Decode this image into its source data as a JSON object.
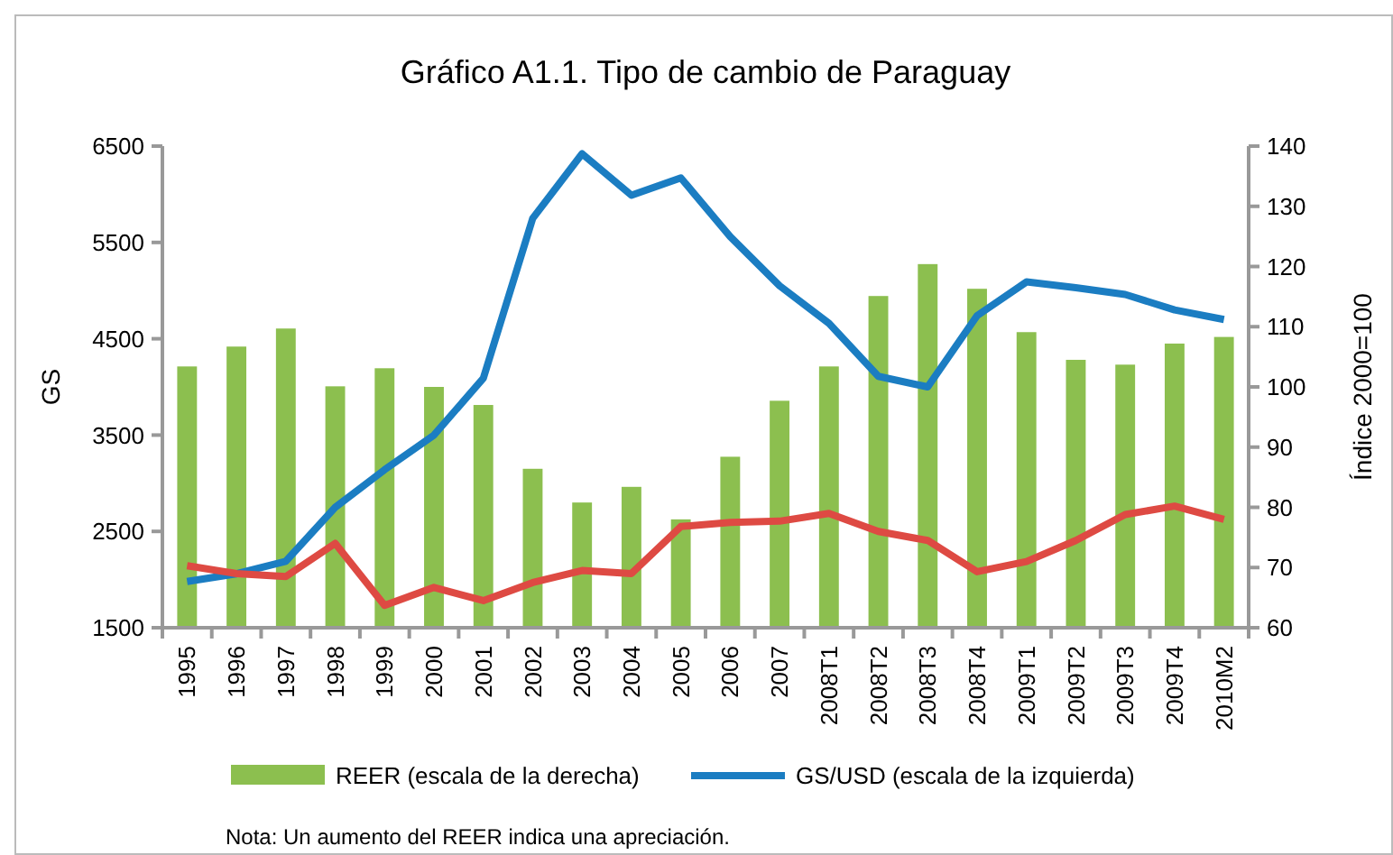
{
  "chart_data": {
    "type": "bar",
    "title": "Gráfico A1.1. Tipo de cambio de Paraguay",
    "ylabel": "GS",
    "y2label": "Índice 2000=100",
    "categories": [
      "1995",
      "1996",
      "1997",
      "1998",
      "1999",
      "2000",
      "2001",
      "2002",
      "2003",
      "2004",
      "2005",
      "2006",
      "2007",
      "2008T1",
      "2008T2",
      "2008T3",
      "2008T4",
      "2009T1",
      "2009T2",
      "2009T3",
      "2009T4",
      "2010M2"
    ],
    "series": [
      {
        "name": "REER (escala de la derecha)",
        "axis": "y2",
        "color": "#8cbf4f",
        "values": [
          103.4,
          106.7,
          109.7,
          100.1,
          103.1,
          100,
          97,
          86.4,
          80.8,
          83.4,
          78,
          88.4,
          97.7,
          103.4,
          115.1,
          120.4,
          116.3,
          109.1,
          104.5,
          103.7,
          107.2,
          108.3
        ]
      },
      {
        "name": "GS/USD (escala de la izquierda)",
        "type": "line",
        "color": "#1b7dc2",
        "values": [
          1980,
          2060,
          2190,
          2750,
          3140,
          3500,
          4090,
          5750,
          6420,
          5990,
          6170,
          5560,
          5050,
          4660,
          4110,
          4000,
          4740,
          5090,
          5030,
          4960,
          4800,
          4700
        ]
      },
      {
        "type": "line",
        "axis": "y2",
        "color": "#de4a43",
        "values": [
          70.3,
          69,
          68.5,
          74,
          63.7,
          66.7,
          64.5,
          67.5,
          69.5,
          69,
          76.8,
          77.5,
          77.7,
          79,
          76,
          74.5,
          69.3,
          71,
          74.5,
          78.8,
          80.2,
          78
        ]
      }
    ],
    "ylim": [
      1500,
      6500
    ],
    "yticks": [
      1500,
      2500,
      3500,
      4500,
      5500,
      6500
    ],
    "y2lim": [
      60,
      140
    ],
    "y2ticks": [
      60,
      70,
      80,
      90,
      100,
      110,
      120,
      130,
      140
    ],
    "grid": false,
    "legend": "bottom",
    "annotations": [
      "Nota: Un aumento del REER indica una apreciación."
    ]
  }
}
